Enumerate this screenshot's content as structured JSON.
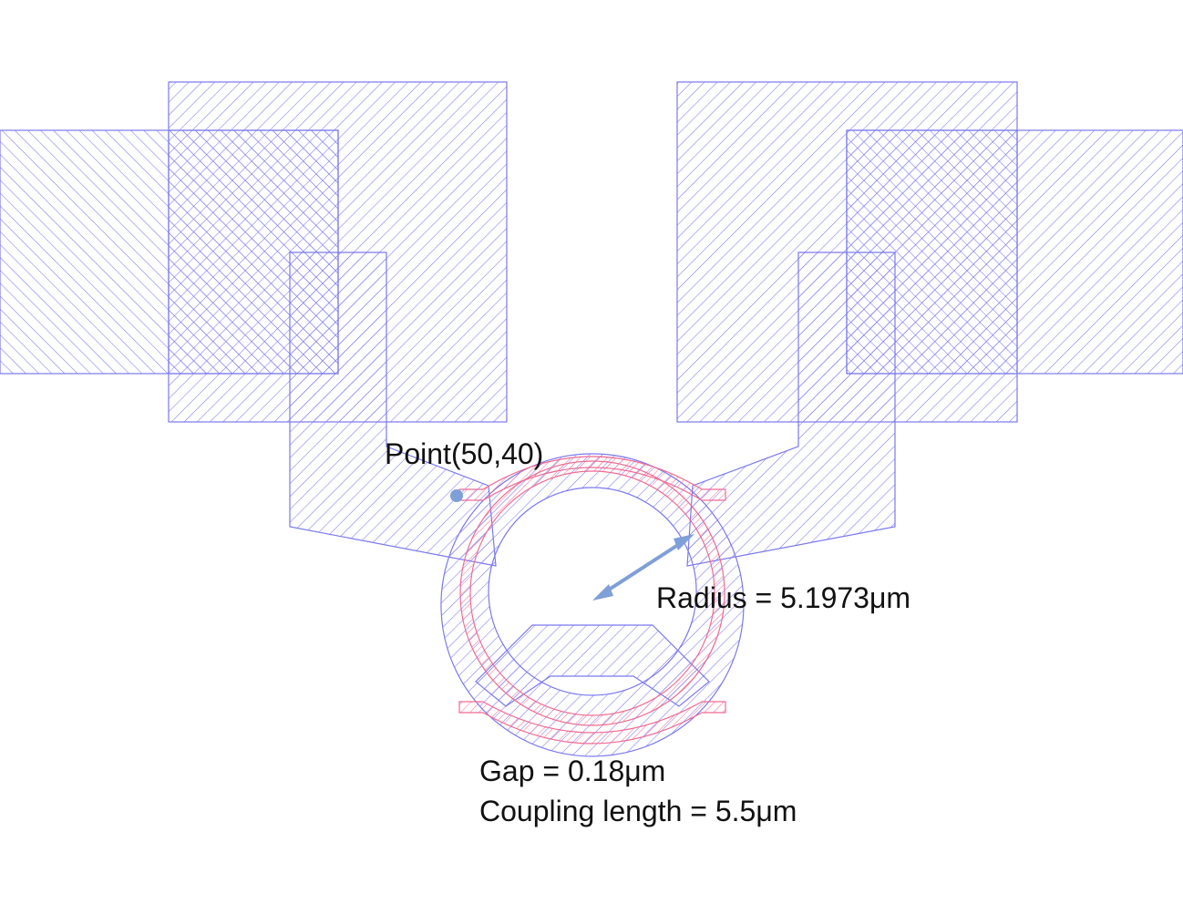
{
  "annotations": {
    "point": "Point(50,40)",
    "radius": "Radius = 5.1973μm",
    "gap": "Gap = 0.18μm",
    "coupling_length": "Coupling length = 5.5μm"
  },
  "colors": {
    "metal_layer": "#7b79ee",
    "waveguide_layer": "#f06b92",
    "marker": "#7f9fd8",
    "text": "#111111",
    "background": "#ffffff"
  }
}
